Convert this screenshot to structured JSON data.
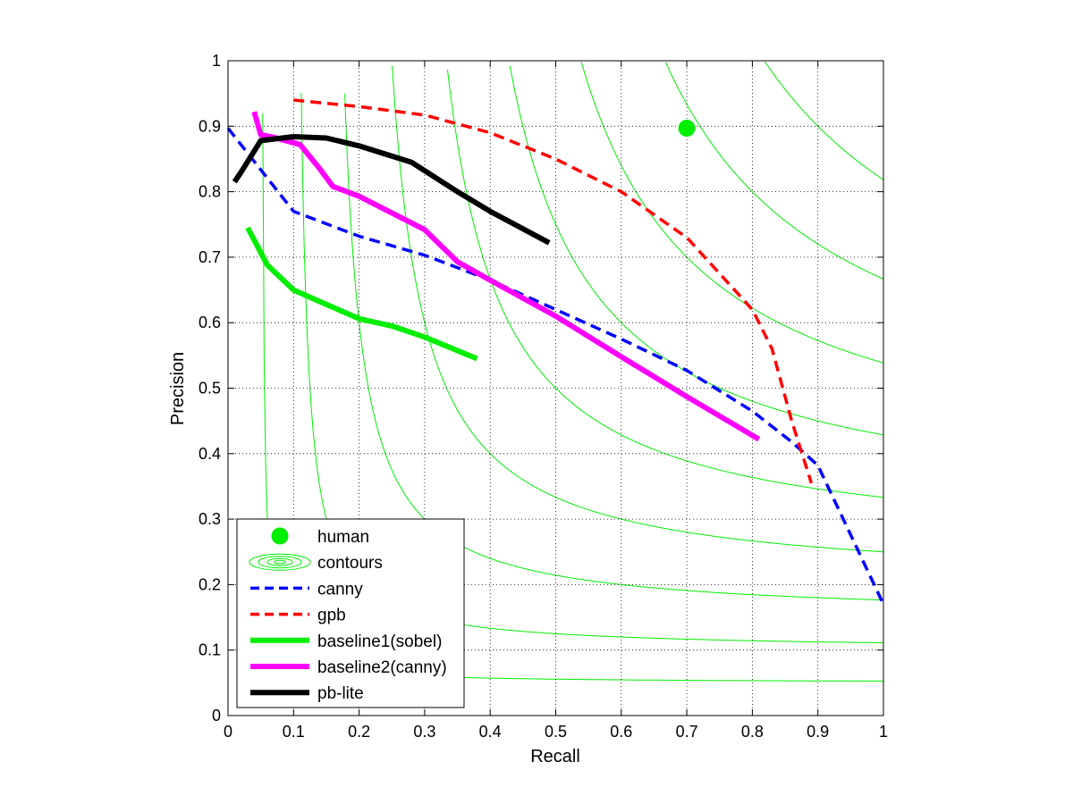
{
  "chart_data": {
    "type": "line",
    "title": "",
    "xlabel": "Recall",
    "ylabel": "Precision",
    "xlim": [
      0,
      1
    ],
    "ylim": [
      0,
      1
    ],
    "xticks": [
      0,
      0.1,
      0.2,
      0.3,
      0.4,
      0.5,
      0.6,
      0.7,
      0.8,
      0.9,
      1
    ],
    "yticks": [
      0,
      0.1,
      0.2,
      0.3,
      0.4,
      0.5,
      0.6,
      0.7,
      0.8,
      0.9,
      1
    ],
    "xtick_labels": [
      "0",
      "0.1",
      "0.2",
      "0.3",
      "0.4",
      "0.5",
      "0.6",
      "0.7",
      "0.8",
      "0.9",
      "1"
    ],
    "ytick_labels": [
      "0",
      "0.1",
      "0.2",
      "0.3",
      "0.4",
      "0.5",
      "0.6",
      "0.7",
      "0.8",
      "0.9",
      "1"
    ],
    "grid": true,
    "legend_position": "bottom-left",
    "contour_levels": [
      0.1,
      0.2,
      0.3,
      0.4,
      0.5,
      0.6,
      0.7,
      0.8,
      0.9
    ],
    "points": [
      {
        "name": "human",
        "color": "#00ee00",
        "x": 0.7,
        "y": 0.897
      }
    ],
    "series": [
      {
        "name": "canny",
        "color": "#0000ff",
        "dashed": true,
        "x": [
          0.0,
          0.1,
          0.2,
          0.3,
          0.4,
          0.5,
          0.6,
          0.7,
          0.8,
          0.86,
          0.9,
          1.0
        ],
        "y": [
          0.897,
          0.77,
          0.732,
          0.703,
          0.665,
          0.62,
          0.575,
          0.527,
          0.465,
          0.418,
          0.382,
          0.17
        ]
      },
      {
        "name": "gpb",
        "color": "#ff0000",
        "dashed": true,
        "x": [
          0.1,
          0.2,
          0.3,
          0.4,
          0.5,
          0.6,
          0.7,
          0.8,
          0.83,
          0.86,
          0.89
        ],
        "y": [
          0.94,
          0.93,
          0.917,
          0.89,
          0.85,
          0.8,
          0.73,
          0.62,
          0.56,
          0.45,
          0.355
        ]
      },
      {
        "name": "baseline1(sobel)",
        "color": "#00ee00",
        "dashed": false,
        "x": [
          0.03,
          0.06,
          0.1,
          0.15,
          0.2,
          0.25,
          0.3,
          0.38
        ],
        "y": [
          0.745,
          0.688,
          0.65,
          0.628,
          0.606,
          0.595,
          0.578,
          0.545
        ]
      },
      {
        "name": "baseline2(canny)",
        "color": "#ff00ff",
        "dashed": false,
        "x": [
          0.04,
          0.05,
          0.07,
          0.11,
          0.14,
          0.16,
          0.2,
          0.3,
          0.35,
          0.4,
          0.5,
          0.6,
          0.7,
          0.81
        ],
        "y": [
          0.922,
          0.887,
          0.883,
          0.872,
          0.835,
          0.808,
          0.793,
          0.742,
          0.693,
          0.665,
          0.61,
          0.548,
          0.487,
          0.422
        ]
      },
      {
        "name": "pb-lite",
        "color": "#000000",
        "dashed": false,
        "x": [
          0.01,
          0.02,
          0.05,
          0.1,
          0.15,
          0.2,
          0.28,
          0.35,
          0.4,
          0.49
        ],
        "y": [
          0.815,
          0.83,
          0.878,
          0.884,
          0.882,
          0.87,
          0.845,
          0.8,
          0.77,
          0.722
        ]
      }
    ],
    "legend": [
      {
        "label": "human",
        "kind": "marker",
        "color": "#00ee00"
      },
      {
        "label": "contours",
        "kind": "contour",
        "color": "#00ee00"
      },
      {
        "label": "canny",
        "kind": "dashed",
        "color": "#0000ff"
      },
      {
        "label": "gpb",
        "kind": "dashed",
        "color": "#ff0000"
      },
      {
        "label": "baseline1(sobel)",
        "kind": "solid",
        "color": "#00ee00"
      },
      {
        "label": "baseline2(canny)",
        "kind": "solid",
        "color": "#ff00ff"
      },
      {
        "label": "pb-lite",
        "kind": "solid",
        "color": "#000000"
      }
    ]
  }
}
